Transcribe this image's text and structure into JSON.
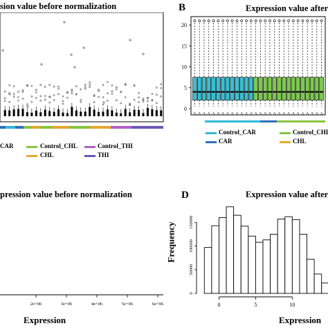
{
  "colors": {
    "control_car": "#33b8d6",
    "car": "#2e6fb7",
    "control_chl": "#86c440",
    "chl": "#e3a92c",
    "control_thi": "#b05fc4",
    "thi": "#6b56b5",
    "box_fill_a": "#3cbdd1",
    "box_fill_b": "#7ec850"
  },
  "panels": {
    "a": {
      "title": "sion value before normalization"
    },
    "b": {
      "letter": "B",
      "title": "Expression value after"
    },
    "c": {
      "title": "pression value before normalization",
      "xlabel": "Expression"
    },
    "d": {
      "letter": "D",
      "title": "Expression value after",
      "xlabel": "Expression",
      "ylabel": "Frequency"
    }
  },
  "legend": {
    "control_car": "Control_CAR",
    "car": "CAR",
    "car_partial": "CAR",
    "control_chl": "Control_CHL",
    "chl": "CHL",
    "control_thi": "Control_THI",
    "thi": "THI"
  },
  "chart_data": [
    {
      "panel": "A",
      "type": "box",
      "title": "sion value before normalization",
      "groups": [
        "Control_CAR",
        "CAR",
        "Control_CHL",
        "CHL",
        "Control_THI",
        "THI"
      ],
      "outliers_visible": true
    },
    {
      "panel": "B",
      "type": "box",
      "title": "Expression value after",
      "ylim": [
        0,
        22
      ],
      "yticks": [
        0,
        5,
        10,
        15,
        20
      ],
      "box_stats": {
        "whisker_low": 0.5,
        "q1": 2,
        "median": 4,
        "q3": 7.5,
        "whisker_high": 20.5
      },
      "n_boxes": 28
    },
    {
      "panel": "C",
      "type": "histogram",
      "title": "pression value before normalization",
      "xlabel": "Expression",
      "xticks": [
        "2e+06",
        "3e+06",
        "4e+06",
        "5e+06",
        "6e+06"
      ],
      "xlim": [
        1000000.0,
        6000000.0
      ]
    },
    {
      "panel": "D",
      "type": "histogram",
      "title": "Expression value after",
      "xlabel": "Expression",
      "ylabel": "Frequency",
      "xticks": [
        0,
        5,
        10
      ],
      "yticks": [
        0,
        50000,
        100000,
        150000
      ],
      "ylim": [
        0,
        190000
      ],
      "bin_width": 1,
      "bin_start": -2,
      "counts": [
        97000,
        143000,
        160000,
        183000,
        165000,
        142000,
        121000,
        108000,
        113000,
        125000,
        157000,
        162000,
        156000,
        125000,
        72000,
        41000,
        22000,
        12000
      ]
    }
  ]
}
